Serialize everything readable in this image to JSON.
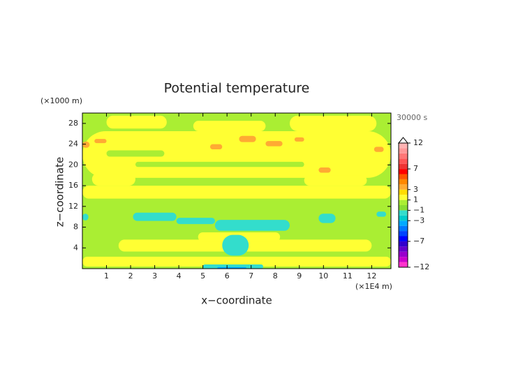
{
  "chart_data": {
    "type": "contour",
    "title": "Potential temperature",
    "y_unit": "(×1000 m)",
    "x_unit": "(×1E4 m)",
    "time_label": "30000 s",
    "x_label": "x−coordinate",
    "y_label": "z−coordinate",
    "xlim": [
      0,
      12.8
    ],
    "xticks": [
      1,
      2,
      3,
      4,
      5,
      6,
      7,
      8,
      9,
      10,
      11,
      12
    ],
    "ylim": [
      0,
      30
    ],
    "yticks": [
      4,
      8,
      12,
      16,
      20,
      24,
      28
    ],
    "background_value": 0.5,
    "regions": [
      {
        "x": [
          0,
          12.8
        ],
        "z": [
          17.5,
          26.5
        ],
        "value": 1.5
      },
      {
        "x": [
          0,
          12.8
        ],
        "z": [
          13.5,
          16
        ],
        "value": 1.5
      },
      {
        "x": [
          0.4,
          2.2
        ],
        "z": [
          16,
          18.5
        ],
        "value": 1.5
      },
      {
        "x": [
          9.2,
          11.8
        ],
        "z": [
          16,
          18
        ],
        "value": 1.5
      },
      {
        "x": [
          1,
          3.5
        ],
        "z": [
          27,
          29.5
        ],
        "value": 1.5
      },
      {
        "x": [
          8.6,
          12.2
        ],
        "z": [
          26.5,
          29.5
        ],
        "value": 1.5
      },
      {
        "x": [
          4.6,
          7.6
        ],
        "z": [
          26.5,
          28.5
        ],
        "value": 1.5
      },
      {
        "x": [
          2.2,
          9.2
        ],
        "z": [
          19.6,
          20.6
        ],
        "value": 0.5
      },
      {
        "x": [
          1,
          3.4
        ],
        "z": [
          21.6,
          22.8
        ],
        "value": 0.5
      },
      {
        "x": [
          1.5,
          12
        ],
        "z": [
          3.3,
          5.6
        ],
        "value": 1.5
      },
      {
        "x": [
          0,
          12.8
        ],
        "z": [
          0.4,
          2.3
        ],
        "value": 1.5
      },
      {
        "x": [
          4.8,
          8.2
        ],
        "z": [
          5.2,
          7
        ],
        "value": 1.5
      },
      {
        "x": [
          0,
          0.25
        ],
        "z": [
          9.3,
          10.6
        ],
        "value": -1.5
      },
      {
        "x": [
          2.1,
          3.9
        ],
        "z": [
          9.2,
          10.8
        ],
        "value": -1.5
      },
      {
        "x": [
          3.9,
          5.5
        ],
        "z": [
          8.6,
          9.8
        ],
        "value": -1.5
      },
      {
        "x": [
          5.5,
          8.6
        ],
        "z": [
          7.3,
          9.4
        ],
        "value": -1.5
      },
      {
        "x": [
          9.8,
          10.5
        ],
        "z": [
          8.8,
          10.6
        ],
        "value": -1.5
      },
      {
        "x": [
          12.2,
          12.6
        ],
        "z": [
          10,
          11
        ],
        "value": -1.5
      },
      {
        "x": [
          5.8,
          6.9
        ],
        "z": [
          2.5,
          6.5
        ],
        "value": -1.5
      },
      {
        "x": [
          5,
          7.5
        ],
        "z": [
          0,
          0.8
        ],
        "value": -1.5
      },
      {
        "x": [
          5.6,
          6.8
        ],
        "z": [
          0,
          0.3
        ],
        "value": -3.5
      },
      {
        "x": [
          0,
          0.3
        ],
        "z": [
          23.3,
          24.5
        ],
        "value": 3.5
      },
      {
        "x": [
          0.5,
          1
        ],
        "z": [
          24.2,
          25
        ],
        "value": 3.5
      },
      {
        "x": [
          5.3,
          5.8
        ],
        "z": [
          23,
          24
        ],
        "value": 3.5
      },
      {
        "x": [
          6.5,
          7.2
        ],
        "z": [
          24.4,
          25.6
        ],
        "value": 3.5
      },
      {
        "x": [
          7.6,
          8.3
        ],
        "z": [
          23.6,
          24.6
        ],
        "value": 3.5
      },
      {
        "x": [
          8.8,
          9.2
        ],
        "z": [
          24.5,
          25.3
        ],
        "value": 3.5
      },
      {
        "x": [
          9.8,
          10.3
        ],
        "z": [
          18.5,
          19.5
        ],
        "value": 3.5
      },
      {
        "x": [
          12.1,
          12.5
        ],
        "z": [
          22.5,
          23.5
        ],
        "value": 3.5
      }
    ],
    "colorbar": {
      "bounds": [
        -12,
        -11,
        -10,
        -9,
        -8,
        -7,
        -6,
        -5,
        -4,
        -3,
        -2,
        -1,
        0,
        1,
        2,
        3,
        4,
        5,
        6,
        7,
        8,
        9,
        10,
        11,
        12
      ],
      "colors": [
        "#ff33cc",
        "#cc00cc",
        "#9900cc",
        "#6600cc",
        "#3300cc",
        "#0000ff",
        "#0044ff",
        "#0077ff",
        "#00aaff",
        "#00cccc",
        "#33ddcc",
        "#88dd33",
        "#aaee33",
        "#ffff33",
        "#ffdd00",
        "#ffaa33",
        "#ff8800",
        "#ff5500",
        "#ff0000",
        "#ee3333",
        "#ff5555",
        "#ff7777",
        "#ff9999",
        "#ffb3b3"
      ],
      "extend_color": "#ffffff",
      "ticks": [
        {
          "value": -12,
          "label": "−12"
        },
        {
          "value": -7,
          "label": "−7"
        },
        {
          "value": -3,
          "label": "−3"
        },
        {
          "value": -1,
          "label": "−1"
        },
        1,
        3,
        7,
        12
      ]
    }
  }
}
